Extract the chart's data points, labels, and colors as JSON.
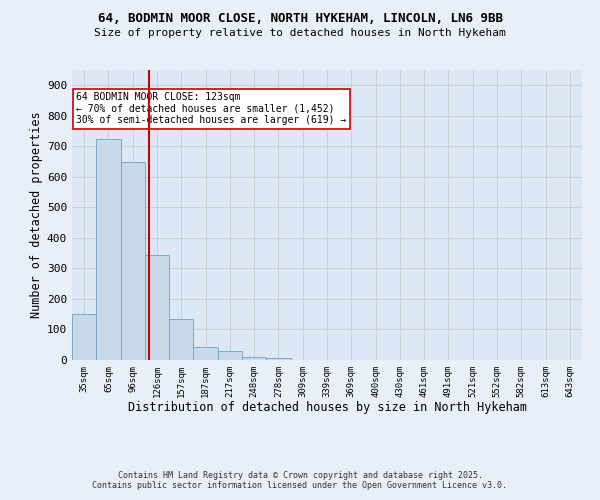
{
  "title_line1": "64, BODMIN MOOR CLOSE, NORTH HYKEHAM, LINCOLN, LN6 9BB",
  "title_line2": "Size of property relative to detached houses in North Hykeham",
  "xlabel": "Distribution of detached houses by size in North Hykeham",
  "ylabel": "Number of detached properties",
  "bar_labels": [
    "35sqm",
    "65sqm",
    "96sqm",
    "126sqm",
    "157sqm",
    "187sqm",
    "217sqm",
    "248sqm",
    "278sqm",
    "309sqm",
    "339sqm",
    "369sqm",
    "400sqm",
    "430sqm",
    "461sqm",
    "491sqm",
    "521sqm",
    "552sqm",
    "582sqm",
    "613sqm",
    "643sqm"
  ],
  "bar_values": [
    150,
    725,
    650,
    345,
    133,
    42,
    30,
    11,
    6,
    0,
    0,
    0,
    0,
    0,
    0,
    0,
    0,
    0,
    0,
    0,
    0
  ],
  "bar_color": "#c8d9ea",
  "bar_edgecolor": "#7aaac8",
  "bar_linewidth": 0.7,
  "vline_x": 2.67,
  "vline_color": "#cc0000",
  "annotation_text": "64 BODMIN MOOR CLOSE: 123sqm\n← 70% of detached houses are smaller (1,452)\n30% of semi-detached houses are larger (619) →",
  "annotation_box_edgecolor": "#cc0000",
  "annotation_box_facecolor": "#ffffff",
  "ylim": [
    0,
    950
  ],
  "yticks": [
    0,
    100,
    200,
    300,
    400,
    500,
    600,
    700,
    800,
    900
  ],
  "grid_color": "#cccccc",
  "bg_color": "#e8eff8",
  "plot_bg_color": "#dce8f5",
  "footnote": "Contains HM Land Registry data © Crown copyright and database right 2025.\nContains public sector information licensed under the Open Government Licence v3.0.",
  "figsize": [
    6.0,
    5.0
  ],
  "dpi": 100
}
